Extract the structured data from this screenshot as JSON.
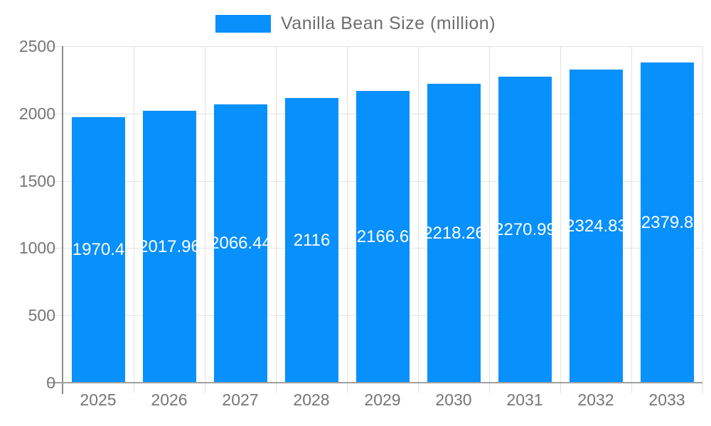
{
  "colors": {
    "bar": "#0890fc",
    "axis_text": "#757575",
    "legend_text": "#6e6e6e",
    "gridline": "#e2e2e2",
    "axis_line": "#8c8c8c",
    "baseline": "#a0a0a0",
    "value_label": "#ffffff",
    "background": "#ffffff"
  },
  "chart_data": {
    "type": "bar",
    "title": "",
    "legend": {
      "label": "Vanilla Bean Size (million)",
      "position": "top",
      "swatch_color": "#0890fc"
    },
    "categories": [
      "2025",
      "2026",
      "2027",
      "2028",
      "2029",
      "2030",
      "2031",
      "2032",
      "2033"
    ],
    "series": [
      {
        "name": "Vanilla Bean Size (million)",
        "values": [
          1970.4,
          2017.96,
          2066.44,
          2116,
          2166.6,
          2218.26,
          2270.99,
          2324.83,
          2379.8
        ]
      }
    ],
    "value_labels": [
      "1970.4",
      "2017.96",
      "2066.44",
      "2116",
      "2166.6",
      "2218.26",
      "2270.99",
      "2324.83",
      "2379.8"
    ],
    "xlabel": "",
    "ylabel": "",
    "ylim": [
      0,
      2500
    ],
    "yticks": [
      0,
      500,
      1000,
      1500,
      2000,
      2500
    ],
    "grid": true,
    "bar_labels_inside": true
  }
}
